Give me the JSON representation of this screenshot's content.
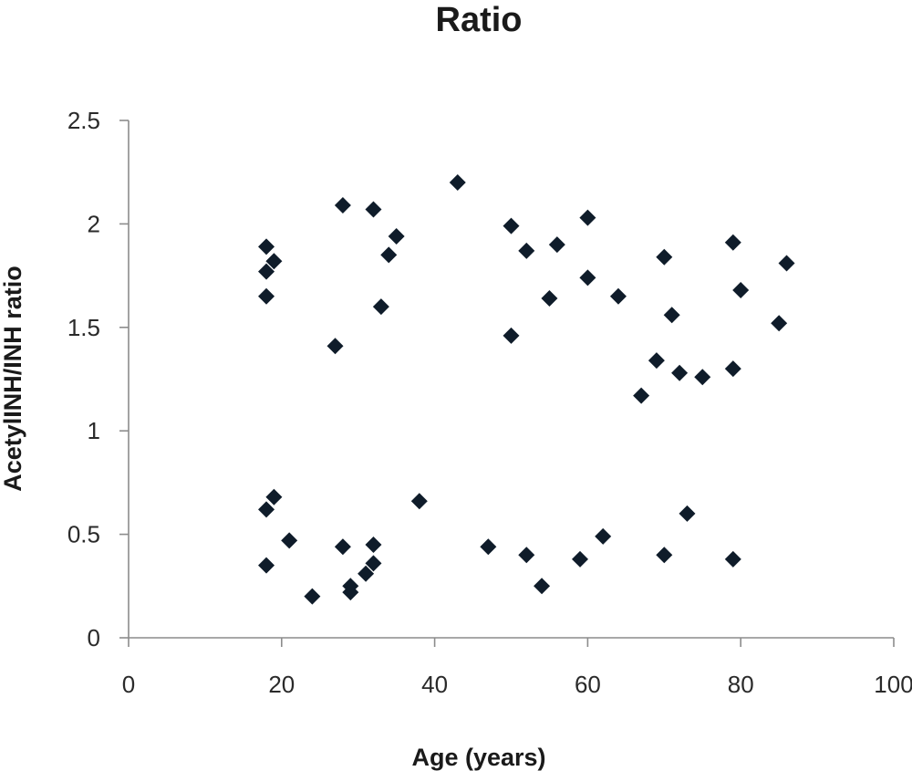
{
  "chart_data": {
    "type": "scatter",
    "title": "Ratio",
    "xlabel": "Age (years)",
    "ylabel": "AcetylINH/INH ratio",
    "xlim": [
      0,
      100
    ],
    "ylim": [
      0,
      2.5
    ],
    "xticks": [
      "0",
      "20",
      "40",
      "60",
      "80",
      "100"
    ],
    "yticks": [
      "0",
      "0.5",
      "1",
      "1.5",
      "2",
      "2.5"
    ],
    "grid": false,
    "legend": "none",
    "marker": "diamond",
    "marker_color": "#0f1c2a",
    "points": [
      {
        "x": 18,
        "y": 1.89
      },
      {
        "x": 18,
        "y": 1.77
      },
      {
        "x": 19,
        "y": 1.82
      },
      {
        "x": 18,
        "y": 1.65
      },
      {
        "x": 18,
        "y": 0.62
      },
      {
        "x": 19,
        "y": 0.68
      },
      {
        "x": 18,
        "y": 0.35
      },
      {
        "x": 21,
        "y": 0.47
      },
      {
        "x": 24,
        "y": 0.2
      },
      {
        "x": 27,
        "y": 1.41
      },
      {
        "x": 28,
        "y": 2.09
      },
      {
        "x": 28,
        "y": 0.44
      },
      {
        "x": 29,
        "y": 0.25
      },
      {
        "x": 29,
        "y": 0.22
      },
      {
        "x": 31,
        "y": 0.31
      },
      {
        "x": 32,
        "y": 0.36
      },
      {
        "x": 32,
        "y": 0.45
      },
      {
        "x": 32,
        "y": 2.07
      },
      {
        "x": 33,
        "y": 1.6
      },
      {
        "x": 34,
        "y": 1.85
      },
      {
        "x": 35,
        "y": 1.94
      },
      {
        "x": 38,
        "y": 0.66
      },
      {
        "x": 43,
        "y": 2.2
      },
      {
        "x": 47,
        "y": 0.44
      },
      {
        "x": 50,
        "y": 1.99
      },
      {
        "x": 50,
        "y": 1.46
      },
      {
        "x": 52,
        "y": 1.87
      },
      {
        "x": 52,
        "y": 0.4
      },
      {
        "x": 54,
        "y": 0.25
      },
      {
        "x": 55,
        "y": 1.64
      },
      {
        "x": 56,
        "y": 1.9
      },
      {
        "x": 59,
        "y": 0.38
      },
      {
        "x": 60,
        "y": 2.03
      },
      {
        "x": 60,
        "y": 1.74
      },
      {
        "x": 62,
        "y": 0.49
      },
      {
        "x": 64,
        "y": 1.65
      },
      {
        "x": 67,
        "y": 1.17
      },
      {
        "x": 69,
        "y": 1.34
      },
      {
        "x": 70,
        "y": 1.84
      },
      {
        "x": 70,
        "y": 0.4
      },
      {
        "x": 71,
        "y": 1.56
      },
      {
        "x": 72,
        "y": 1.28
      },
      {
        "x": 73,
        "y": 0.6
      },
      {
        "x": 75,
        "y": 1.26
      },
      {
        "x": 79,
        "y": 1.91
      },
      {
        "x": 79,
        "y": 1.3
      },
      {
        "x": 79,
        "y": 0.38
      },
      {
        "x": 80,
        "y": 1.68
      },
      {
        "x": 85,
        "y": 1.52
      },
      {
        "x": 86,
        "y": 1.81
      }
    ]
  }
}
